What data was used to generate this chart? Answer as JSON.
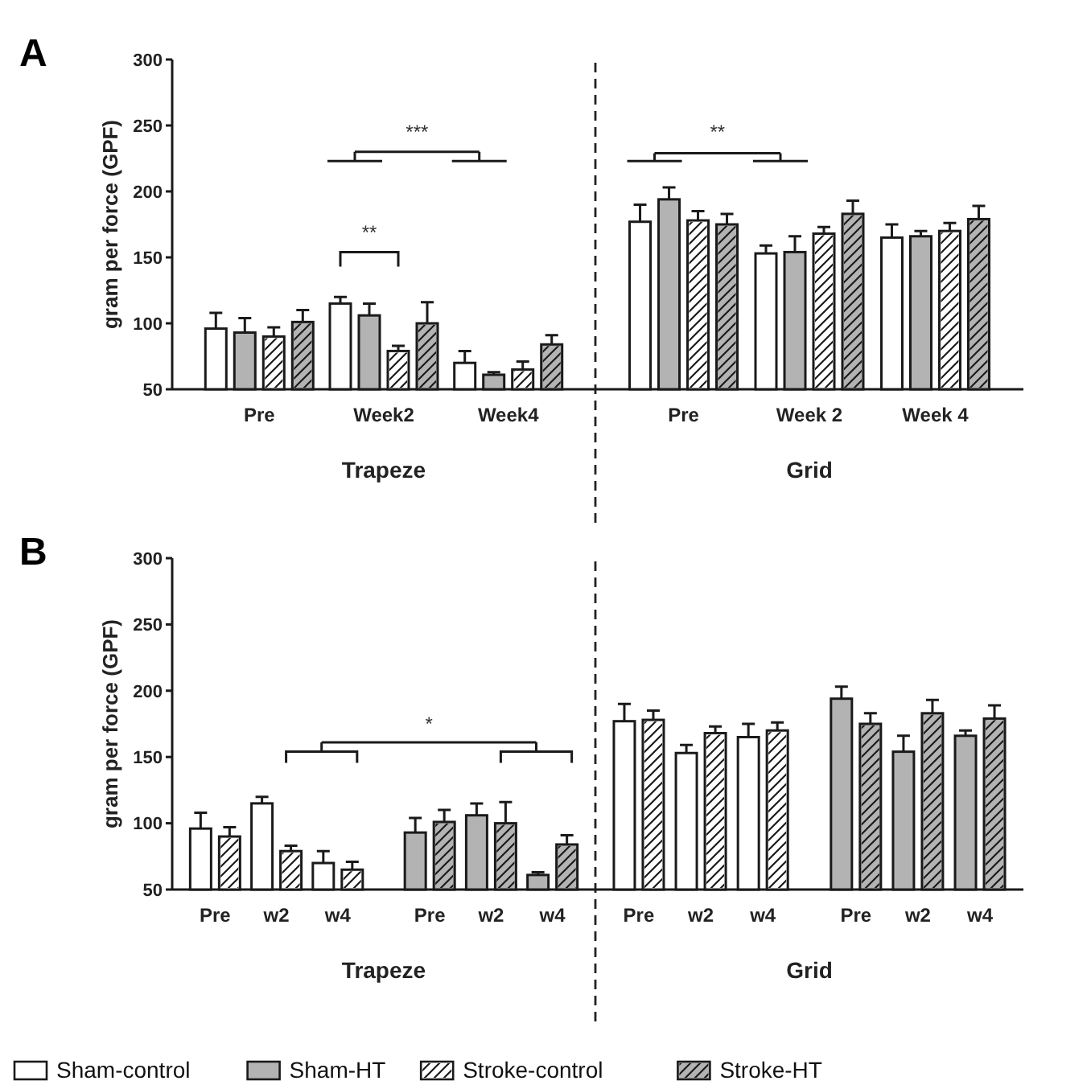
{
  "chart_data": [
    {
      "type": "bar",
      "title": "A",
      "ylabel": "gram per force (GPF)",
      "xlabel": "Trapeze",
      "categories": [
        "Pre",
        "Week2",
        "Week4"
      ],
      "ylim": [
        50,
        300
      ],
      "yticks": [
        50,
        100,
        150,
        200,
        250,
        300
      ],
      "annotations": [
        "**",
        "***"
      ],
      "series": [
        {
          "color": "#ffffff",
          "values": [
            96,
            115,
            70
          ],
          "errors": [
            12,
            5,
            9
          ]
        },
        {
          "color": "#b3b3b3",
          "values": [
            93,
            106,
            61
          ],
          "errors": [
            11,
            9,
            2
          ]
        },
        {
          "color": "#ffffff",
          "values": [
            90,
            79,
            65
          ],
          "errors": [
            7,
            4,
            6
          ]
        },
        {
          "color": "#b3b3b3",
          "values": [
            101,
            100,
            84
          ],
          "errors": [
            9,
            16,
            7
          ]
        }
      ]
    },
    {
      "type": "bar",
      "xlabel": "Grid",
      "categories": [
        "Pre",
        "Week 2",
        "Week 4"
      ],
      "ylim": [
        50,
        300
      ],
      "yticks": [
        50,
        100,
        150,
        200,
        250,
        300
      ],
      "tick_labels": "x",
      "annotations": [
        "**"
      ],
      "series": [
        {
          "color": "#ffffff",
          "values": [
            177,
            153,
            165
          ],
          "errors": [
            13,
            6,
            10
          ]
        },
        {
          "color": "#b3b3b3",
          "values": [
            194,
            154,
            166
          ],
          "errors": [
            9,
            12,
            4
          ]
        },
        {
          "color": "#ffffff",
          "values": [
            178,
            168,
            170
          ],
          "errors": [
            7,
            5,
            6
          ]
        },
        {
          "color": "#b3b3b3",
          "values": [
            175,
            183,
            179
          ],
          "errors": [
            8,
            10,
            10
          ]
        }
      ]
    },
    {
      "type": "bar",
      "title": "B",
      "ylabel": "gram per force (GPF)",
      "xlabel": "Trapeze",
      "categories": [
        "Pre",
        "w2",
        "w4",
        "Pre",
        "w2",
        "w4"
      ],
      "ylim": [
        50,
        300
      ],
      "yticks": [
        50,
        100,
        150,
        200,
        250,
        300
      ],
      "annotations": [
        "*"
      ],
      "legend": "bottom",
      "series": [
        {
          "name": "Sham-control",
          "color": "#ffffff",
          "values": [
            96,
            115,
            70,
            null,
            null,
            null
          ],
          "errors": [
            12,
            5,
            9,
            null,
            null,
            null
          ]
        },
        {
          "name": "Sham-HT",
          "color": "#b3b3b3",
          "values": [
            null,
            null,
            null,
            93,
            106,
            61
          ],
          "errors": [
            null,
            null,
            null,
            11,
            9,
            2
          ]
        },
        {
          "name": "Stroke-control",
          "color": "#ffffff",
          "values": [
            90,
            79,
            65,
            null,
            null,
            null
          ],
          "errors": [
            7,
            4,
            6,
            null,
            null,
            null
          ]
        },
        {
          "name": "Stroke-HT",
          "color": "#b3b3b3",
          "values": [
            null,
            null,
            null,
            101,
            100,
            84
          ],
          "errors": [
            null,
            null,
            null,
            9,
            16,
            7
          ]
        }
      ]
    },
    {
      "type": "bar",
      "xlabel": "Grid",
      "categories": [
        "Pre",
        "w2",
        "w4",
        "Pre",
        "w2",
        "w4"
      ],
      "ylim": [
        50,
        300
      ],
      "yticks": [
        50,
        100,
        150,
        200,
        250,
        300
      ],
      "tick_labels": "x",
      "series": [
        {
          "color": "#ffffff",
          "values": [
            177,
            153,
            165,
            null,
            null,
            null
          ],
          "errors": [
            13,
            6,
            10,
            null,
            null,
            null
          ]
        },
        {
          "color": "#b3b3b3",
          "values": [
            null,
            null,
            null,
            194,
            154,
            166
          ],
          "errors": [
            null,
            null,
            null,
            9,
            12,
            4
          ]
        },
        {
          "color": "#ffffff",
          "values": [
            178,
            168,
            170,
            null,
            null,
            null
          ],
          "errors": [
            7,
            5,
            6,
            null,
            null,
            null
          ]
        },
        {
          "color": "#b3b3b3",
          "values": [
            null,
            null,
            null,
            175,
            183,
            179
          ],
          "errors": [
            null,
            null,
            null,
            8,
            10,
            10
          ]
        }
      ]
    }
  ]
}
